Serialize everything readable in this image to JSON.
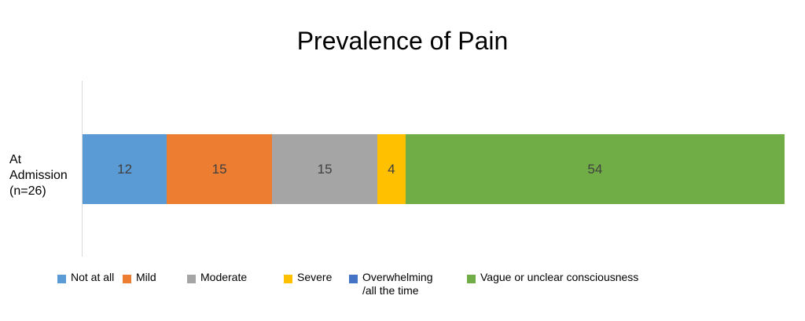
{
  "chart_data": {
    "type": "bar",
    "orientation": "horizontal",
    "stacked": true,
    "title": "Prevalence of Pain",
    "xlabel": "",
    "ylabel": "",
    "categories": [
      "At\nAdmission\n(n=26)"
    ],
    "xlim": [
      0,
      100
    ],
    "grid": false,
    "legend_position": "bottom",
    "series": [
      {
        "name": "Not at all",
        "values": [
          12
        ],
        "color": "#5b9bd5",
        "label": "12"
      },
      {
        "name": "Mild",
        "values": [
          15
        ],
        "color": "#ed7d31",
        "label": "15"
      },
      {
        "name": "Moderate",
        "values": [
          15
        ],
        "color": "#a5a5a5",
        "label": "15"
      },
      {
        "name": "Severe",
        "values": [
          4
        ],
        "color": "#ffc000",
        "label": "4"
      },
      {
        "name": "Overwhelming\n/all the time",
        "values": [
          0
        ],
        "color": "#4472c4",
        "label": ""
      },
      {
        "name": "Vague or unclear consciousness",
        "values": [
          54
        ],
        "color": "#70ad47",
        "label": "54"
      }
    ]
  }
}
